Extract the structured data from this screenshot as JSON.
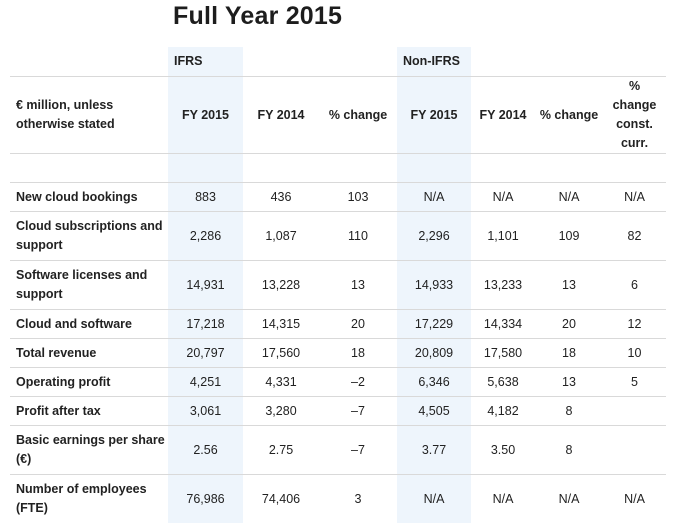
{
  "title": "Full Year 2015",
  "group_headers": {
    "ifrs": "IFRS",
    "non_ifrs": "Non-IFRS"
  },
  "row_header_label": "€ million, unless otherwise stated",
  "column_headers": [
    "FY 2015",
    "FY 2014",
    "% change",
    "FY 2015",
    "FY 2014",
    "% change",
    "% change const. curr."
  ],
  "highlight_color": "#eef5fc",
  "rows": [
    {
      "label": "New cloud bookings",
      "values": [
        "883",
        "436",
        "103",
        "N/A",
        "N/A",
        "N/A",
        "N/A"
      ]
    },
    {
      "label": "Cloud subscriptions and support",
      "values": [
        "2,286",
        "1,087",
        "110",
        "2,296",
        "1,101",
        "109",
        "82"
      ]
    },
    {
      "label": "Software licenses and support",
      "values": [
        "14,931",
        "13,228",
        "13",
        "14,933",
        "13,233",
        "13",
        "6"
      ]
    },
    {
      "label": "Cloud and software",
      "values": [
        "17,218",
        "14,315",
        "20",
        "17,229",
        "14,334",
        "20",
        "12"
      ]
    },
    {
      "label": "Total revenue",
      "values": [
        "20,797",
        "17,560",
        "18",
        "20,809",
        "17,580",
        "18",
        "10"
      ]
    },
    {
      "label": "Operating profit",
      "values": [
        "4,251",
        "4,331",
        "–2",
        "6,346",
        "5,638",
        "13",
        "5"
      ]
    },
    {
      "label": "Profit after tax",
      "values": [
        "3,061",
        "3,280",
        "–7",
        "4,505",
        "4,182",
        "8",
        ""
      ]
    },
    {
      "label": "Basic earnings per share (€)",
      "values": [
        "2.56",
        "2.75",
        "–7",
        "3.77",
        "3.50",
        "8",
        ""
      ]
    },
    {
      "label": "Number of employees (FTE)",
      "values": [
        "76,986",
        "74,406",
        "3",
        "N/A",
        "N/A",
        "N/A",
        "N/A"
      ]
    }
  ]
}
